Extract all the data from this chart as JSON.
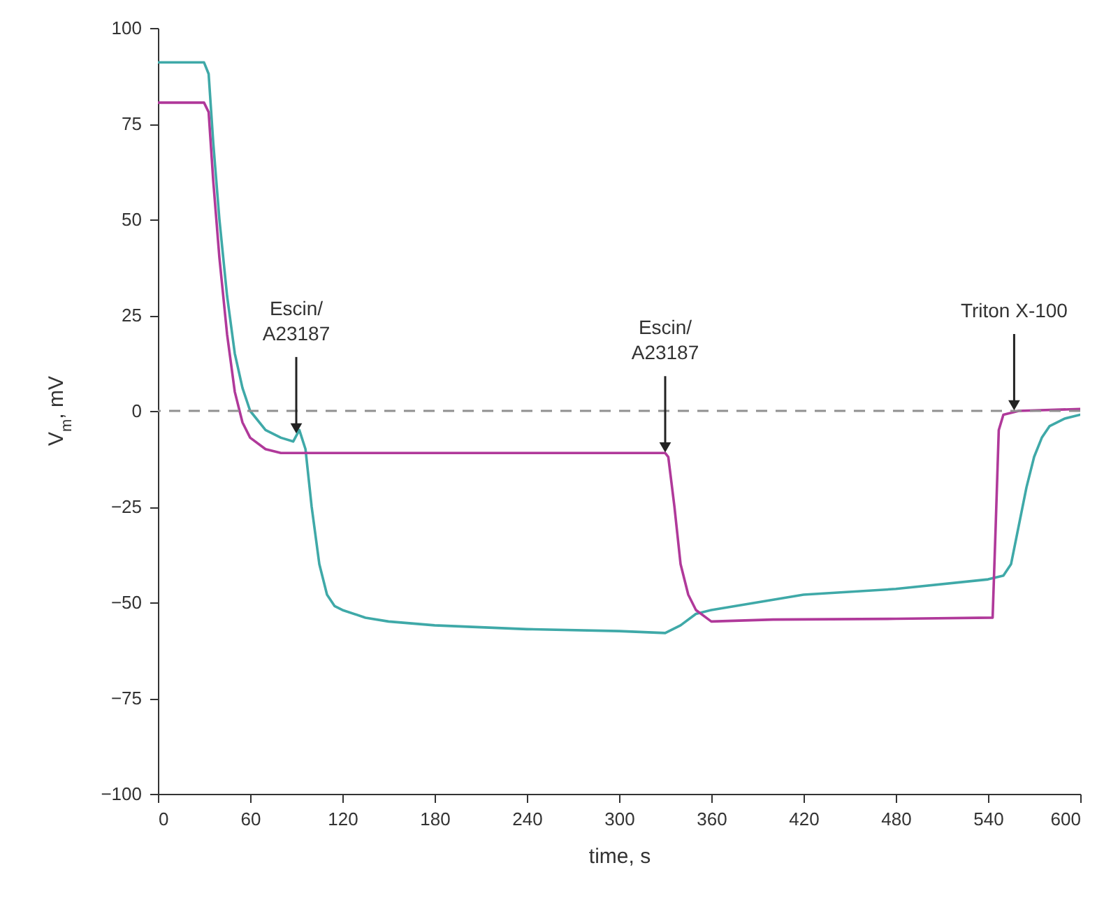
{
  "chart_data": {
    "type": "line",
    "xlabel": "time, s",
    "ylabel": "V$_{m}$, mV",
    "xlim": [
      0,
      600
    ],
    "xticks": [
      0,
      60,
      120,
      180,
      240,
      300,
      360,
      420,
      480,
      540,
      600
    ],
    "ylim": [
      -100,
      100
    ],
    "yticks": [
      -100,
      -75,
      -50,
      -25,
      0,
      25,
      50,
      75,
      100
    ],
    "grid": false,
    "marker": "none",
    "line_style": "solid",
    "ref_lines": [
      {
        "axis": "y",
        "value": 0,
        "color": "#909090",
        "line_style": "dashed"
      }
    ],
    "annotations": [
      {
        "text": "Escin/\nA23187",
        "x": 90,
        "y": -6
      },
      {
        "text": "Escin/\nA23187",
        "x": 330,
        "y": -11
      },
      {
        "text": "Triton X-100",
        "x": 557,
        "y": 0
      }
    ],
    "series": [
      {
        "color": "#3fa9a8",
        "x": [
          0,
          30,
          33,
          36,
          40,
          45,
          50,
          55,
          60,
          70,
          80,
          88,
          92,
          96,
          100,
          105,
          110,
          115,
          120,
          135,
          150,
          180,
          240,
          300,
          330,
          340,
          350,
          360,
          390,
          420,
          480,
          540,
          550,
          555,
          560,
          565,
          570,
          575,
          580,
          590,
          600
        ],
        "values": [
          91,
          91,
          88,
          70,
          50,
          30,
          15,
          6,
          0,
          -5,
          -7,
          -8,
          -5,
          -10,
          -25,
          -40,
          -48,
          -51,
          -52,
          -54,
          -55,
          -56,
          -57,
          -57.5,
          -58,
          -56,
          -53,
          -52,
          -50,
          -48,
          -46.5,
          -44,
          -43,
          -40,
          -30,
          -20,
          -12,
          -7,
          -4,
          -2,
          -1
        ]
      },
      {
        "color": "#b0399a",
        "x": [
          0,
          30,
          33,
          36,
          40,
          45,
          50,
          55,
          60,
          70,
          80,
          92,
          150,
          240,
          330,
          332,
          336,
          340,
          345,
          350,
          360,
          400,
          480,
          543,
          545,
          547,
          550,
          560,
          600
        ],
        "values": [
          80.5,
          80.5,
          78,
          60,
          40,
          20,
          5,
          -3,
          -7,
          -10,
          -11,
          -11,
          -11,
          -11,
          -11,
          -12,
          -25,
          -40,
          -48,
          -52,
          -55,
          -54.5,
          -54.3,
          -54,
          -30,
          -5,
          -1,
          0,
          0.5
        ]
      }
    ]
  }
}
